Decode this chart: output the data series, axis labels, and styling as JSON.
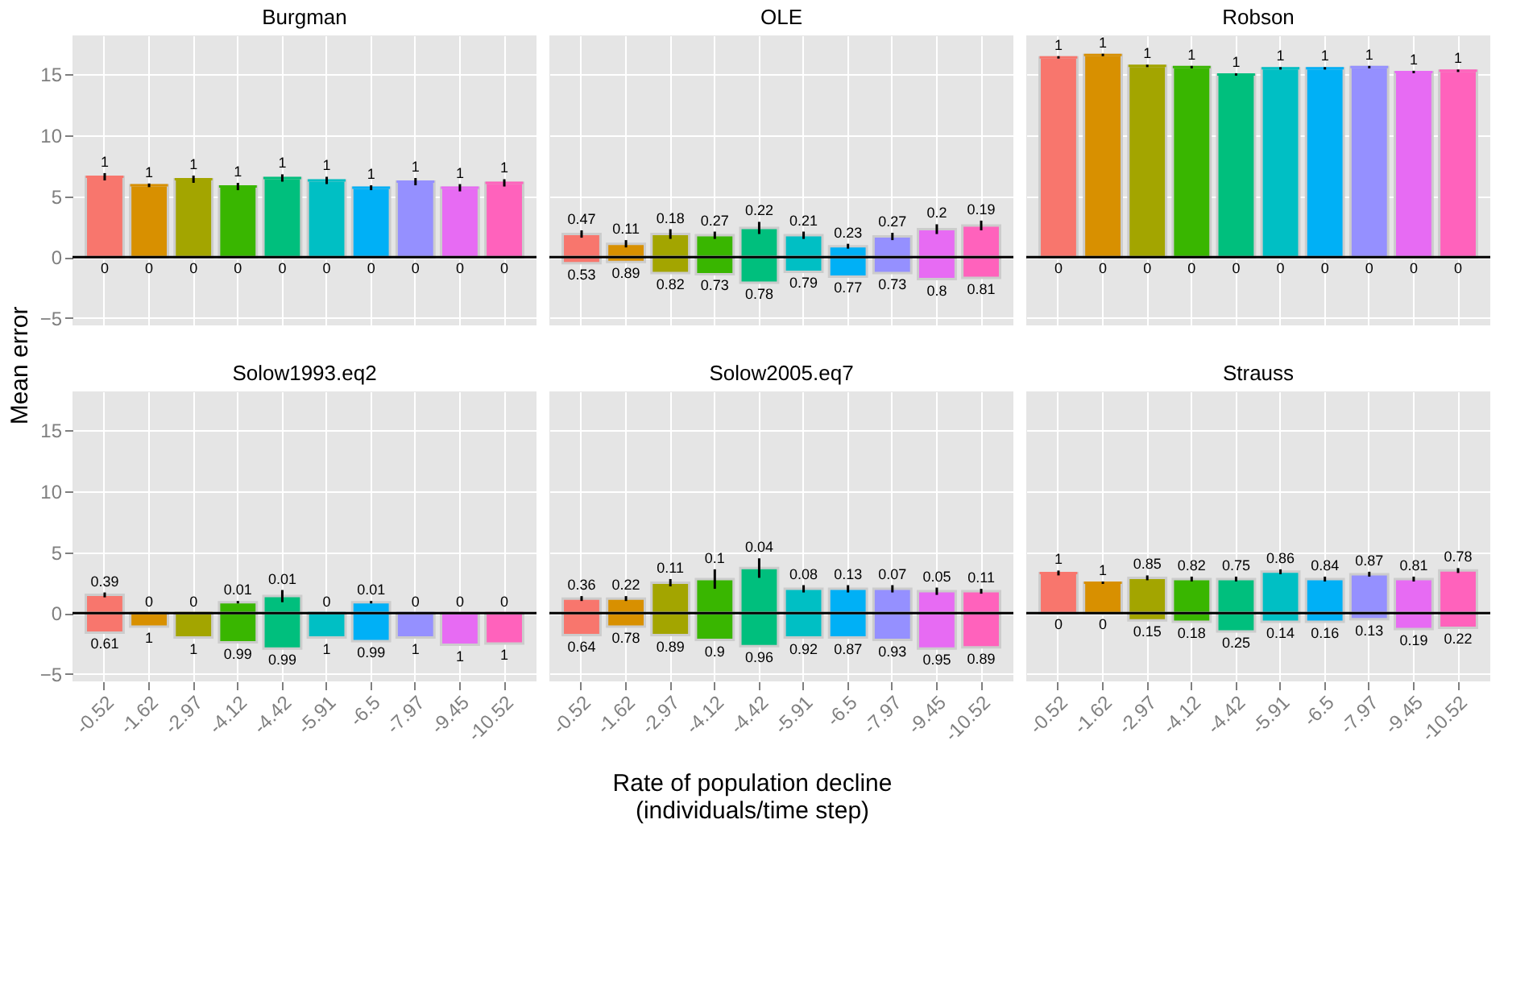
{
  "chart_data": [
    {
      "type": "bar",
      "title": "Burgman",
      "ylabel": "Mean error",
      "categories": [
        "-0.52",
        "-1.62",
        "-2.97",
        "-4.12",
        "-4.42",
        "-5.91",
        "-6.5",
        "-7.97",
        "-9.45",
        "-10.52"
      ],
      "stacked": true,
      "ylim": [
        -5.6,
        18.2
      ],
      "yticks": [
        -5,
        0,
        5,
        10,
        15
      ],
      "grid": true,
      "tick_labels": "y",
      "ref_lines": [
        {
          "axis": "y",
          "value": 0,
          "color": "#000000"
        }
      ],
      "series": [
        {
          "colors": [
            "#f8766d",
            "#d89000",
            "#a3a500",
            "#39b600",
            "#00bf7d",
            "#00bfc4",
            "#00b0f6",
            "#9590ff",
            "#e76bf3",
            "#ff62bc"
          ],
          "values": [
            6.6,
            5.9,
            6.4,
            5.8,
            6.5,
            6.3,
            5.7,
            6.2,
            5.7,
            6.1
          ],
          "errors": [
            0.3,
            0.15,
            0.3,
            0.3,
            0.3,
            0.3,
            0.2,
            0.3,
            0.3,
            0.3
          ]
        },
        {
          "colors": [
            "#f8766d",
            "#d89000",
            "#a3a500",
            "#39b600",
            "#00bf7d",
            "#00bfc4",
            "#00b0f6",
            "#9590ff",
            "#e76bf3",
            "#ff62bc"
          ],
          "values": [
            0,
            0,
            0,
            0,
            0,
            0,
            0,
            0,
            0,
            0
          ]
        }
      ],
      "annotations": [
        {
          "text": "1",
          "x": "-0.52",
          "y": 6.6
        },
        {
          "text": "1",
          "x": "-1.62",
          "y": 5.9
        },
        {
          "text": "1",
          "x": "-2.97",
          "y": 6.4
        },
        {
          "text": "1",
          "x": "-4.12",
          "y": 5.8
        },
        {
          "text": "1",
          "x": "-4.42",
          "y": 6.5
        },
        {
          "text": "1",
          "x": "-5.91",
          "y": 6.3
        },
        {
          "text": "1",
          "x": "-6.5",
          "y": 5.7
        },
        {
          "text": "1",
          "x": "-7.97",
          "y": 6.2
        },
        {
          "text": "1",
          "x": "-9.45",
          "y": 5.7
        },
        {
          "text": "1",
          "x": "-10.52",
          "y": 6.1
        },
        {
          "text": "0",
          "x": "-0.52",
          "y": 0
        },
        {
          "text": "0",
          "x": "-1.62",
          "y": 0
        },
        {
          "text": "0",
          "x": "-2.97",
          "y": 0
        },
        {
          "text": "0",
          "x": "-4.12",
          "y": 0
        },
        {
          "text": "0",
          "x": "-4.42",
          "y": 0
        },
        {
          "text": "0",
          "x": "-5.91",
          "y": 0
        },
        {
          "text": "0",
          "x": "-6.5",
          "y": 0
        },
        {
          "text": "0",
          "x": "-7.97",
          "y": 0
        },
        {
          "text": "0",
          "x": "-9.45",
          "y": 0
        },
        {
          "text": "0",
          "x": "-10.52",
          "y": 0
        }
      ]
    },
    {
      "type": "bar",
      "title": "OLE",
      "categories": [
        "-0.52",
        "-1.62",
        "-2.97",
        "-4.12",
        "-4.42",
        "-5.91",
        "-6.5",
        "-7.97",
        "-9.45",
        "-10.52"
      ],
      "stacked": true,
      "ylim": [
        -5.6,
        18.2
      ],
      "yticks": [
        -5,
        0,
        5,
        10,
        15
      ],
      "grid": true,
      "tick_labels": false,
      "ref_lines": [
        {
          "axis": "y",
          "value": 0,
          "color": "#000000"
        }
      ],
      "series": [
        {
          "colors": [
            "#f8766d",
            "#d89000",
            "#a3a500",
            "#39b600",
            "#00bf7d",
            "#00bfc4",
            "#00b0f6",
            "#9590ff",
            "#e76bf3",
            "#ff62bc"
          ],
          "values": [
            1.9,
            1.1,
            1.9,
            1.8,
            2.4,
            1.8,
            0.9,
            1.7,
            2.3,
            2.6
          ],
          "errors": [
            0.3,
            0.3,
            0.4,
            0.3,
            0.5,
            0.3,
            0.2,
            0.3,
            0.4,
            0.4
          ]
        },
        {
          "colors": [
            "#f8766d",
            "#d89000",
            "#a3a500",
            "#39b600",
            "#00bf7d",
            "#00bfc4",
            "#00b0f6",
            "#9590ff",
            "#e76bf3",
            "#ff62bc"
          ],
          "values": [
            -0.5,
            -0.4,
            -1.3,
            -1.4,
            -2.1,
            -1.2,
            -1.6,
            -1.3,
            -1.8,
            -1.7
          ]
        }
      ],
      "annotations": [
        {
          "text": "0.47",
          "x": "-0.52",
          "y": 1.9
        },
        {
          "text": "0.11",
          "x": "-1.62",
          "y": 1.1
        },
        {
          "text": "0.18",
          "x": "-2.97",
          "y": 1.9
        },
        {
          "text": "0.27",
          "x": "-4.12",
          "y": 1.8
        },
        {
          "text": "0.22",
          "x": "-4.42",
          "y": 2.4
        },
        {
          "text": "0.21",
          "x": "-5.91",
          "y": 1.8
        },
        {
          "text": "0.23",
          "x": "-6.5",
          "y": 0.9
        },
        {
          "text": "0.27",
          "x": "-7.97",
          "y": 1.7
        },
        {
          "text": "0.2",
          "x": "-9.45",
          "y": 2.3
        },
        {
          "text": "0.19",
          "x": "-10.52",
          "y": 2.6
        },
        {
          "text": "0.53",
          "x": "-0.52",
          "y": -0.5
        },
        {
          "text": "0.89",
          "x": "-1.62",
          "y": -0.4
        },
        {
          "text": "0.82",
          "x": "-2.97",
          "y": -1.3
        },
        {
          "text": "0.73",
          "x": "-4.12",
          "y": -1.4
        },
        {
          "text": "0.78",
          "x": "-4.42",
          "y": -2.1
        },
        {
          "text": "0.79",
          "x": "-5.91",
          "y": -1.2
        },
        {
          "text": "0.77",
          "x": "-6.5",
          "y": -1.6
        },
        {
          "text": "0.73",
          "x": "-7.97",
          "y": -1.3
        },
        {
          "text": "0.8",
          "x": "-9.45",
          "y": -1.8
        },
        {
          "text": "0.81",
          "x": "-10.52",
          "y": -1.7
        }
      ]
    },
    {
      "type": "bar",
      "title": "Robson",
      "categories": [
        "-0.52",
        "-1.62",
        "-2.97",
        "-4.12",
        "-4.42",
        "-5.91",
        "-6.5",
        "-7.97",
        "-9.45",
        "-10.52"
      ],
      "stacked": true,
      "ylim": [
        -5.6,
        18.2
      ],
      "yticks": [
        -5,
        0,
        5,
        10,
        15
      ],
      "grid": true,
      "tick_labels": false,
      "ref_lines": [
        {
          "axis": "y",
          "value": 0,
          "color": "#000000"
        }
      ],
      "series": [
        {
          "colors": [
            "#f8766d",
            "#d89000",
            "#a3a500",
            "#39b600",
            "#00bf7d",
            "#00bfc4",
            "#00b0f6",
            "#9590ff",
            "#e76bf3",
            "#ff62bc"
          ],
          "values": [
            16.4,
            16.6,
            15.7,
            15.6,
            15.0,
            15.5,
            15.5,
            15.6,
            15.2,
            15.3
          ],
          "errors": [
            0.1,
            0.1,
            0.1,
            0.1,
            0.1,
            0.1,
            0.1,
            0.1,
            0.1,
            0.1
          ]
        },
        {
          "colors": [
            "#f8766d",
            "#d89000",
            "#a3a500",
            "#39b600",
            "#00bf7d",
            "#00bfc4",
            "#00b0f6",
            "#9590ff",
            "#e76bf3",
            "#ff62bc"
          ],
          "values": [
            0,
            0,
            0,
            0,
            0,
            0,
            0,
            0,
            0,
            0
          ]
        }
      ],
      "annotations": [
        {
          "text": "1",
          "x": "-0.52",
          "y": 16.4
        },
        {
          "text": "1",
          "x": "-1.62",
          "y": 16.6
        },
        {
          "text": "1",
          "x": "-2.97",
          "y": 15.7
        },
        {
          "text": "1",
          "x": "-4.12",
          "y": 15.6
        },
        {
          "text": "1",
          "x": "-4.42",
          "y": 15.0
        },
        {
          "text": "1",
          "x": "-5.91",
          "y": 15.5
        },
        {
          "text": "1",
          "x": "-6.5",
          "y": 15.5
        },
        {
          "text": "1",
          "x": "-7.97",
          "y": 15.6
        },
        {
          "text": "1",
          "x": "-9.45",
          "y": 15.2
        },
        {
          "text": "1",
          "x": "-10.52",
          "y": 15.3
        },
        {
          "text": "0",
          "x": "-0.52",
          "y": 0
        },
        {
          "text": "0",
          "x": "-1.62",
          "y": 0
        },
        {
          "text": "0",
          "x": "-2.97",
          "y": 0
        },
        {
          "text": "0",
          "x": "-4.12",
          "y": 0
        },
        {
          "text": "0",
          "x": "-4.42",
          "y": 0
        },
        {
          "text": "0",
          "x": "-5.91",
          "y": 0
        },
        {
          "text": "0",
          "x": "-6.5",
          "y": 0
        },
        {
          "text": "0",
          "x": "-7.97",
          "y": 0
        },
        {
          "text": "0",
          "x": "-9.45",
          "y": 0
        },
        {
          "text": "0",
          "x": "-10.52",
          "y": 0
        }
      ]
    },
    {
      "type": "bar",
      "title": "Solow1993.eq2",
      "categories": [
        "-0.52",
        "-1.62",
        "-2.97",
        "-4.12",
        "-4.42",
        "-5.91",
        "-6.5",
        "-7.97",
        "-9.45",
        "-10.52"
      ],
      "stacked": true,
      "ylim": [
        -5.6,
        18.2
      ],
      "yticks": [
        -5,
        0,
        5,
        10,
        15
      ],
      "grid": true,
      "ref_lines": [
        {
          "axis": "y",
          "value": 0,
          "color": "#000000"
        }
      ],
      "series": [
        {
          "colors": [
            "#f8766d",
            "#d89000",
            "#a3a500",
            "#39b600",
            "#00bf7d",
            "#00bfc4",
            "#00b0f6",
            "#9590ff",
            "#e76bf3",
            "#ff62bc"
          ],
          "values": [
            1.5,
            0,
            0,
            0.9,
            1.4,
            0,
            0.9,
            0,
            0,
            0
          ],
          "errors": [
            0.2,
            null,
            null,
            0.1,
            0.5,
            null,
            0.1,
            null,
            null,
            null
          ]
        },
        {
          "colors": [
            "#f8766d",
            "#d89000",
            "#a3a500",
            "#39b600",
            "#00bf7d",
            "#00bfc4",
            "#00b0f6",
            "#9590ff",
            "#e76bf3",
            "#ff62bc"
          ],
          "values": [
            -1.6,
            -1.1,
            -2.0,
            -2.4,
            -2.9,
            -2.0,
            -2.3,
            -2.0,
            -2.6,
            -2.5
          ]
        }
      ],
      "annotations": [
        {
          "text": "0.39",
          "x": "-0.52",
          "y": 1.5
        },
        {
          "text": "0",
          "x": "-1.62",
          "y": 0
        },
        {
          "text": "0",
          "x": "-2.97",
          "y": 0
        },
        {
          "text": "0.01",
          "x": "-4.12",
          "y": 0.9
        },
        {
          "text": "0.01",
          "x": "-4.42",
          "y": 1.4
        },
        {
          "text": "0",
          "x": "-5.91",
          "y": 0
        },
        {
          "text": "0.01",
          "x": "-6.5",
          "y": 0.9
        },
        {
          "text": "0",
          "x": "-7.97",
          "y": 0
        },
        {
          "text": "0",
          "x": "-9.45",
          "y": 0
        },
        {
          "text": "0",
          "x": "-10.52",
          "y": 0
        },
        {
          "text": "0.61",
          "x": "-0.52",
          "y": -1.6
        },
        {
          "text": "1",
          "x": "-1.62",
          "y": -1.1
        },
        {
          "text": "1",
          "x": "-2.97",
          "y": -2.0
        },
        {
          "text": "0.99",
          "x": "-4.12",
          "y": -2.4
        },
        {
          "text": "0.99",
          "x": "-4.42",
          "y": -2.9
        },
        {
          "text": "1",
          "x": "-5.91",
          "y": -2.0
        },
        {
          "text": "0.99",
          "x": "-6.5",
          "y": -2.3
        },
        {
          "text": "1",
          "x": "-7.97",
          "y": -2.0
        },
        {
          "text": "1",
          "x": "-9.45",
          "y": -2.6
        },
        {
          "text": "1",
          "x": "-10.52",
          "y": -2.5
        }
      ]
    },
    {
      "type": "bar",
      "title": "Solow2005.eq7",
      "xlabel": "Rate of population decline\n(individuals/time step)",
      "categories": [
        "-0.52",
        "-1.62",
        "-2.97",
        "-4.12",
        "-4.42",
        "-5.91",
        "-6.5",
        "-7.97",
        "-9.45",
        "-10.52"
      ],
      "stacked": true,
      "ylim": [
        -5.6,
        18.2
      ],
      "yticks": [
        -5,
        0,
        5,
        10,
        15
      ],
      "grid": true,
      "tick_labels": "x",
      "ref_lines": [
        {
          "axis": "y",
          "value": 0,
          "color": "#000000"
        }
      ],
      "series": [
        {
          "colors": [
            "#f8766d",
            "#d89000",
            "#a3a500",
            "#39b600",
            "#00bf7d",
            "#00bfc4",
            "#00b0f6",
            "#9590ff",
            "#e76bf3",
            "#ff62bc"
          ],
          "values": [
            1.2,
            1.2,
            2.5,
            2.8,
            3.7,
            2.0,
            2.0,
            2.0,
            1.8,
            1.8
          ],
          "errors": [
            0.2,
            0.2,
            0.3,
            0.8,
            0.8,
            0.3,
            0.3,
            0.3,
            0.3,
            0.2
          ]
        },
        {
          "colors": [
            "#f8766d",
            "#d89000",
            "#a3a500",
            "#39b600",
            "#00bf7d",
            "#00bfc4",
            "#00b0f6",
            "#9590ff",
            "#e76bf3",
            "#ff62bc"
          ],
          "values": [
            -1.8,
            -1.1,
            -1.8,
            -2.2,
            -2.7,
            -2.0,
            -2.0,
            -2.2,
            -2.9,
            -2.8
          ]
        }
      ],
      "annotations": [
        {
          "text": "0.36",
          "x": "-0.52",
          "y": 1.2
        },
        {
          "text": "0.22",
          "x": "-1.62",
          "y": 1.2
        },
        {
          "text": "0.11",
          "x": "-2.97",
          "y": 2.5
        },
        {
          "text": "0.1",
          "x": "-4.12",
          "y": 2.8
        },
        {
          "text": "0.04",
          "x": "-4.42",
          "y": 3.7
        },
        {
          "text": "0.08",
          "x": "-5.91",
          "y": 2.0
        },
        {
          "text": "0.13",
          "x": "-6.5",
          "y": 2.0
        },
        {
          "text": "0.07",
          "x": "-7.97",
          "y": 2.0
        },
        {
          "text": "0.05",
          "x": "-9.45",
          "y": 1.8
        },
        {
          "text": "0.11",
          "x": "-10.52",
          "y": 1.8
        },
        {
          "text": "0.64",
          "x": "-0.52",
          "y": -1.8
        },
        {
          "text": "0.78",
          "x": "-1.62",
          "y": -1.1
        },
        {
          "text": "0.89",
          "x": "-2.97",
          "y": -1.8
        },
        {
          "text": "0.9",
          "x": "-4.12",
          "y": -2.2
        },
        {
          "text": "0.96",
          "x": "-4.42",
          "y": -2.7
        },
        {
          "text": "0.92",
          "x": "-5.91",
          "y": -2.0
        },
        {
          "text": "0.87",
          "x": "-6.5",
          "y": -2.0
        },
        {
          "text": "0.93",
          "x": "-7.97",
          "y": -2.2
        },
        {
          "text": "0.95",
          "x": "-9.45",
          "y": -2.9
        },
        {
          "text": "0.89",
          "x": "-10.52",
          "y": -2.8
        }
      ]
    },
    {
      "type": "bar",
      "title": "Strauss",
      "categories": [
        "-0.52",
        "-1.62",
        "-2.97",
        "-4.12",
        "-4.42",
        "-5.91",
        "-6.5",
        "-7.97",
        "-9.45",
        "-10.52"
      ],
      "stacked": true,
      "ylim": [
        -5.6,
        18.2
      ],
      "yticks": [
        -5,
        0,
        5,
        10,
        15
      ],
      "grid": true,
      "tick_labels": "x",
      "ref_lines": [
        {
          "axis": "y",
          "value": 0,
          "color": "#000000"
        }
      ],
      "series": [
        {
          "colors": [
            "#f8766d",
            "#d89000",
            "#a3a500",
            "#39b600",
            "#00bf7d",
            "#00bfc4",
            "#00b0f6",
            "#9590ff",
            "#e76bf3",
            "#ff62bc"
          ],
          "values": [
            3.3,
            2.5,
            2.9,
            2.8,
            2.8,
            3.4,
            2.8,
            3.2,
            2.8,
            3.5
          ],
          "errors": [
            0.2,
            0.1,
            0.2,
            0.2,
            0.2,
            0.2,
            0.2,
            0.2,
            0.2,
            0.2
          ]
        },
        {
          "colors": [
            "#f8766d",
            "#d89000",
            "#a3a500",
            "#39b600",
            "#00bf7d",
            "#00bfc4",
            "#00b0f6",
            "#9590ff",
            "#e76bf3",
            "#ff62bc"
          ],
          "values": [
            0,
            0,
            -0.6,
            -0.7,
            -1.5,
            -0.7,
            -0.7,
            -0.5,
            -1.3,
            -1.2
          ]
        }
      ],
      "annotations": [
        {
          "text": "1",
          "x": "-0.52",
          "y": 3.3
        },
        {
          "text": "1",
          "x": "-1.62",
          "y": 2.5
        },
        {
          "text": "0.85",
          "x": "-2.97",
          "y": 2.9
        },
        {
          "text": "0.82",
          "x": "-4.12",
          "y": 2.8
        },
        {
          "text": "0.75",
          "x": "-4.42",
          "y": 2.8
        },
        {
          "text": "0.86",
          "x": "-5.91",
          "y": 3.4
        },
        {
          "text": "0.84",
          "x": "-6.5",
          "y": 2.8
        },
        {
          "text": "0.87",
          "x": "-7.97",
          "y": 3.2
        },
        {
          "text": "0.81",
          "x": "-9.45",
          "y": 2.8
        },
        {
          "text": "0.78",
          "x": "-10.52",
          "y": 3.5
        },
        {
          "text": "0",
          "x": "-0.52",
          "y": 0
        },
        {
          "text": "0",
          "x": "-1.62",
          "y": 0
        },
        {
          "text": "0.15",
          "x": "-2.97",
          "y": -0.6
        },
        {
          "text": "0.18",
          "x": "-4.12",
          "y": -0.7
        },
        {
          "text": "0.25",
          "x": "-4.42",
          "y": -1.5
        },
        {
          "text": "0.14",
          "x": "-5.91",
          "y": -0.7
        },
        {
          "text": "0.16",
          "x": "-6.5",
          "y": -0.7
        },
        {
          "text": "0.13",
          "x": "-7.97",
          "y": -0.5
        },
        {
          "text": "0.19",
          "x": "-9.45",
          "y": -1.3
        },
        {
          "text": "0.22",
          "x": "-10.52",
          "y": -1.2
        }
      ]
    }
  ]
}
